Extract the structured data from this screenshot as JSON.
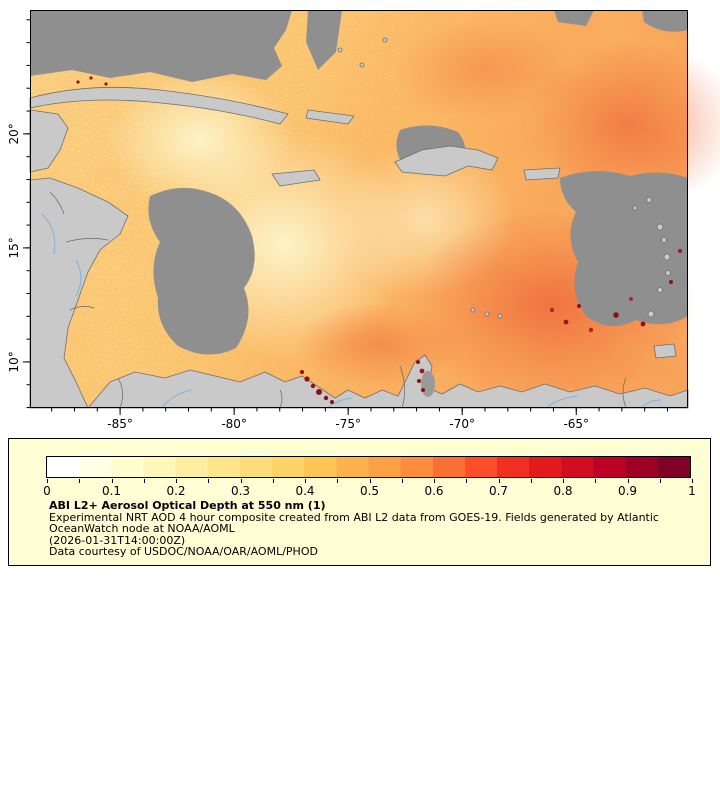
{
  "chart_data": {
    "type": "heatmap",
    "title": "ABI L2+ Aerosol Optical Depth at 550 nm (1)",
    "variable": "Aerosol Optical Depth at 550 nm",
    "colorbar_range": [
      0,
      1
    ],
    "colorbar_tick_labels": [
      "0",
      "0.1",
      "0.2",
      "0.3",
      "0.4",
      "0.5",
      "0.6",
      "0.7",
      "0.8",
      "0.9",
      "1"
    ],
    "x_axis": {
      "tick_labels": [
        "-85°",
        "-80°",
        "-75°",
        "-70°",
        "-65°"
      ]
    },
    "y_axis": {
      "tick_labels": [
        "20°",
        "15°",
        "10°"
      ]
    },
    "legend_position": "bottom"
  },
  "map": {
    "axis": {
      "lon_range": [
        -88.95,
        -60.1
      ],
      "lat_range": [
        7.98,
        25.43
      ],
      "lon_ticks": [
        {
          "value": -85,
          "label": "-85°"
        },
        {
          "value": -80,
          "label": "-80°"
        },
        {
          "value": -75,
          "label": "-75°"
        },
        {
          "value": -70,
          "label": "-70°"
        },
        {
          "value": -65,
          "label": "-65°"
        }
      ],
      "lat_ticks": [
        {
          "value": 20,
          "label": "20°"
        },
        {
          "value": 15,
          "label": "15°"
        },
        {
          "value": 10,
          "label": "10°"
        }
      ]
    }
  },
  "legend": {
    "colorbar": {
      "min": 0,
      "max": 1,
      "colors": [
        "#ffffff",
        "#ffffe6",
        "#fffdd0",
        "#fff7b8",
        "#ffeda0",
        "#fee58c",
        "#fedd78",
        "#fed466",
        "#fec554",
        "#feb24c",
        "#fea145",
        "#fd8d3c",
        "#fc6f33",
        "#fc4e2a",
        "#f23021",
        "#e31a1c",
        "#d10d21",
        "#bd0026",
        "#9f0026",
        "#800026"
      ],
      "tick_labels": [
        "0",
        "0.1",
        "0.2",
        "0.3",
        "0.4",
        "0.5",
        "0.6",
        "0.7",
        "0.8",
        "0.9",
        "1"
      ]
    },
    "title": "ABI L2+ Aerosol Optical Depth at 550 nm (1)",
    "description": "Experimental NRT AOD 4 hour composite created from ABI L2 data from GOES-19. Fields generated by Atlantic OceanWatch node at NOAA/AOML",
    "timestamp": "(2026-01-31T14:00:00Z)",
    "credit": "Data courtesy of USDOC/NOAA/OAR/AOML/PHOD"
  },
  "colors": {
    "legend_bg": "#ffffd6",
    "land": "#c9c9c9",
    "no_data": "#8f8f8f",
    "river": "#7fb2dd",
    "max_aod": "#800026"
  }
}
